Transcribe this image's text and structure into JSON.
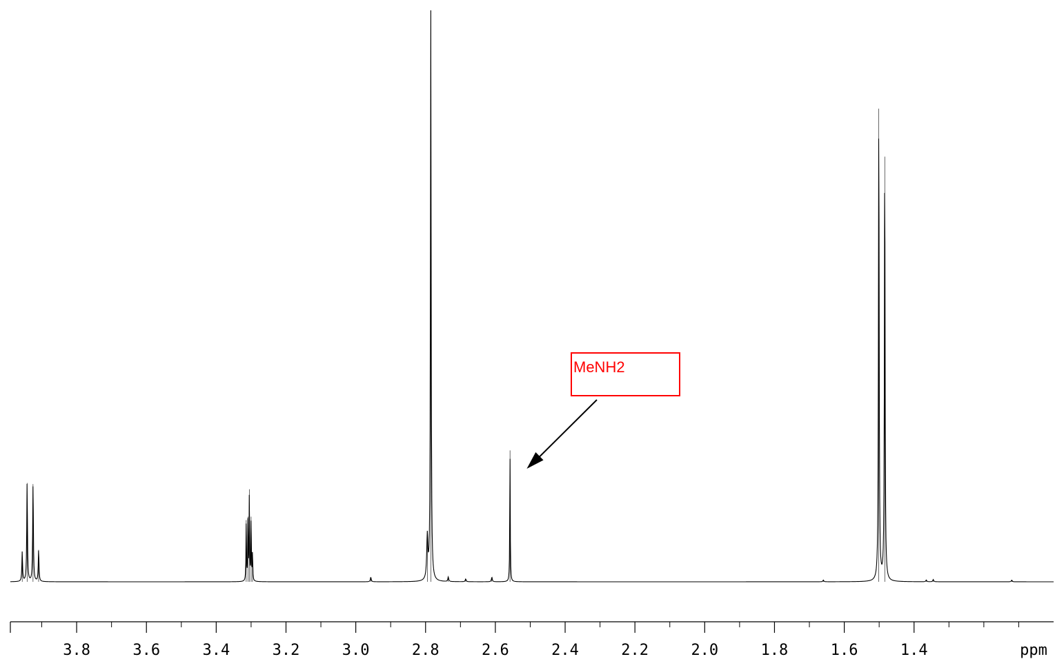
{
  "chart_data": {
    "type": "line",
    "title": "",
    "xlabel": "ppm",
    "ylabel": "",
    "xlim": [
      3.99,
      1.0
    ],
    "x_reversed": true,
    "grid": false,
    "line_color": "#000000",
    "major_ticks": [
      3.8,
      3.6,
      3.4,
      3.2,
      3.0,
      2.8,
      2.6,
      2.4,
      2.2,
      2.0,
      1.8,
      1.6,
      1.4
    ],
    "tick_labels": [
      "3.8",
      "3.6",
      "3.4",
      "3.2",
      "3.0",
      "2.8",
      "2.6",
      "2.4",
      "2.2",
      "2.0",
      "1.8",
      "1.6",
      "1.4"
    ],
    "peaks": [
      {
        "ppm": 3.956,
        "height": 0.052,
        "width": 0.0012
      },
      {
        "ppm": 3.942,
        "height": 0.173,
        "width": 0.0012
      },
      {
        "ppm": 3.925,
        "height": 0.171,
        "width": 0.0012
      },
      {
        "ppm": 3.909,
        "height": 0.056,
        "width": 0.0012
      },
      {
        "ppm": 3.314,
        "height": 0.108,
        "width": 0.0008
      },
      {
        "ppm": 3.309,
        "height": 0.114,
        "width": 0.0008
      },
      {
        "ppm": 3.305,
        "height": 0.162,
        "width": 0.0008
      },
      {
        "ppm": 3.3,
        "height": 0.114,
        "width": 0.0008
      },
      {
        "ppm": 3.296,
        "height": 0.052,
        "width": 0.0008
      },
      {
        "ppm": 2.957,
        "height": 0.008,
        "width": 0.0015
      },
      {
        "ppm": 2.795,
        "height": 0.075,
        "width": 0.002
      },
      {
        "ppm": 2.785,
        "height": 1.0,
        "width": 0.0012
      },
      {
        "ppm": 2.735,
        "height": 0.008,
        "width": 0.0015
      },
      {
        "ppm": 2.685,
        "height": 0.005,
        "width": 0.0015
      },
      {
        "ppm": 2.61,
        "height": 0.008,
        "width": 0.0015
      },
      {
        "ppm": 2.558,
        "height": 0.23,
        "width": 0.0008
      },
      {
        "ppm": 1.501,
        "height": 0.828,
        "width": 0.0012
      },
      {
        "ppm": 1.484,
        "height": 0.744,
        "width": 0.0012
      },
      {
        "ppm": 1.66,
        "height": 0.003,
        "width": 0.0015
      },
      {
        "ppm": 1.365,
        "height": 0.003,
        "width": 0.0015
      },
      {
        "ppm": 1.345,
        "height": 0.004,
        "width": 0.0015
      },
      {
        "ppm": 1.12,
        "height": 0.003,
        "width": 0.0015
      }
    ],
    "annotations": [
      {
        "text": "MeNH2",
        "color": "#ff0000",
        "points_to_ppm": 2.51
      }
    ]
  }
}
